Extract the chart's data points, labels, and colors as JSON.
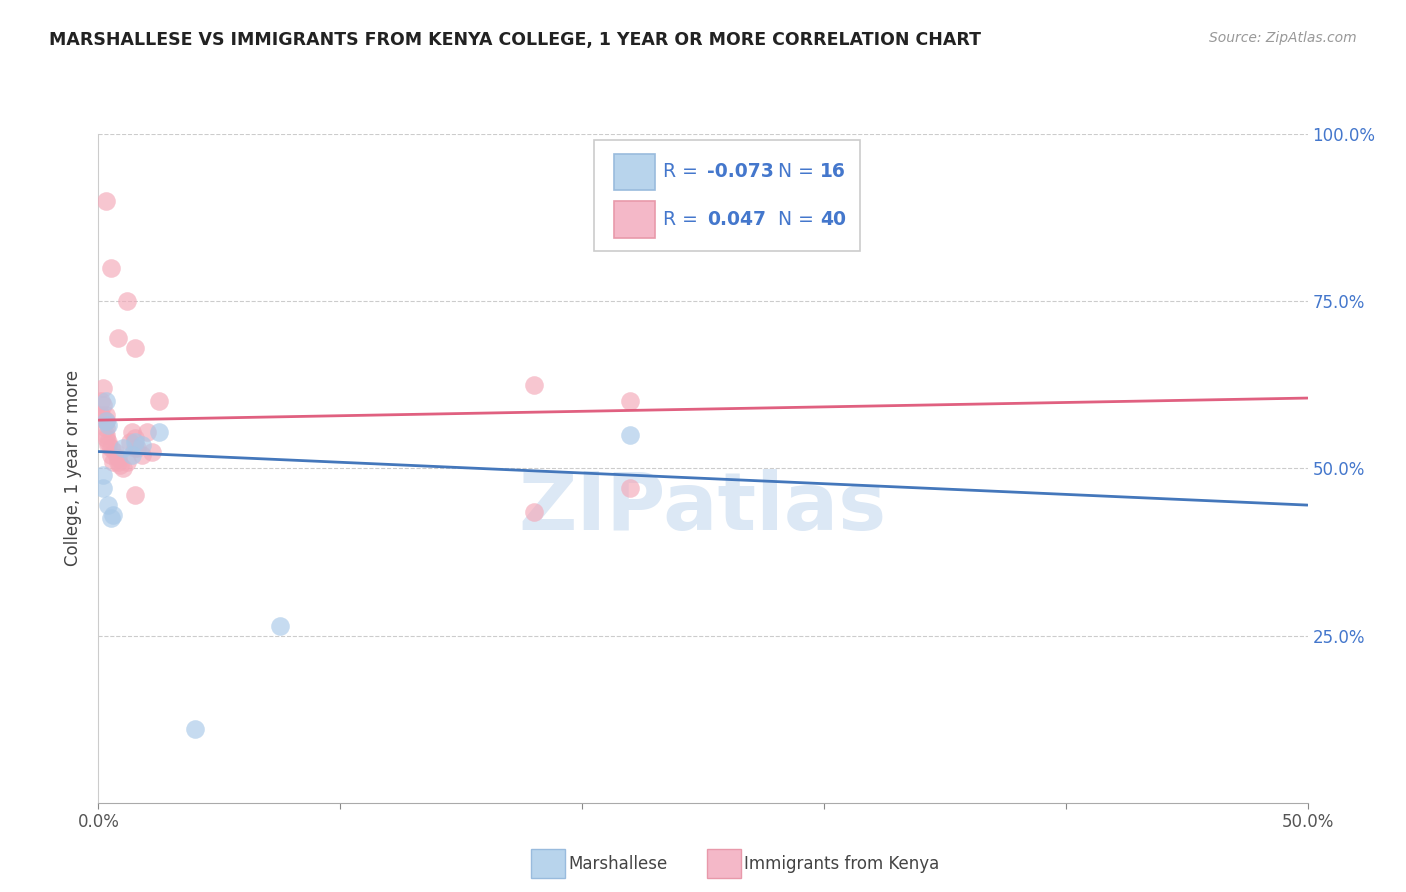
{
  "title": "MARSHALLESE VS IMMIGRANTS FROM KENYA COLLEGE, 1 YEAR OR MORE CORRELATION CHART",
  "source": "Source: ZipAtlas.com",
  "ylabel_label": "College, 1 year or more",
  "xlim": [
    0.0,
    0.5
  ],
  "ylim": [
    0.0,
    1.0
  ],
  "xtick_vals": [
    0.0,
    0.1,
    0.2,
    0.3,
    0.4,
    0.5
  ],
  "xtick_labels": [
    "0.0%",
    "",
    "",
    "",
    "",
    "50.0%"
  ],
  "ytick_vals": [
    0.0,
    0.25,
    0.5,
    0.75,
    1.0
  ],
  "ytick_right_labels": [
    "",
    "25.0%",
    "50.0%",
    "75.0%",
    "100.0%"
  ],
  "blue_scatter_color": "#a8c8e8",
  "pink_scatter_color": "#f4a8b8",
  "blue_line_color": "#4477bb",
  "pink_line_color": "#e06080",
  "legend_text_color": "#4477cc",
  "watermark_text": "ZIPatlas",
  "watermark_color": "#dce8f5",
  "blue_trend_x0": 0.0,
  "blue_trend_y0": 0.525,
  "blue_trend_x1": 0.5,
  "blue_trend_y1": 0.445,
  "pink_trend_x0": 0.0,
  "pink_trend_y0": 0.572,
  "pink_trend_x1": 0.5,
  "pink_trend_y1": 0.605,
  "marshallese_x": [
    0.002,
    0.003,
    0.003,
    0.004,
    0.004,
    0.002,
    0.005,
    0.006,
    0.01,
    0.015,
    0.014,
    0.018,
    0.025,
    0.22,
    0.075,
    0.04
  ],
  "marshallese_y": [
    0.49,
    0.6,
    0.57,
    0.565,
    0.445,
    0.47,
    0.425,
    0.43,
    0.53,
    0.54,
    0.52,
    0.535,
    0.555,
    0.55,
    0.265,
    0.11
  ],
  "kenya_x": [
    0.001,
    0.001,
    0.002,
    0.002,
    0.002,
    0.003,
    0.003,
    0.003,
    0.003,
    0.003,
    0.004,
    0.004,
    0.005,
    0.005,
    0.006,
    0.007,
    0.008,
    0.008,
    0.009,
    0.01,
    0.012,
    0.013,
    0.014,
    0.015,
    0.015,
    0.016,
    0.018,
    0.02,
    0.022,
    0.025,
    0.003,
    0.005,
    0.008,
    0.012,
    0.015,
    0.18,
    0.22,
    0.22,
    0.18,
    0.015
  ],
  "kenya_y": [
    0.58,
    0.6,
    0.62,
    0.595,
    0.575,
    0.58,
    0.57,
    0.56,
    0.55,
    0.545,
    0.54,
    0.535,
    0.53,
    0.52,
    0.51,
    0.525,
    0.515,
    0.51,
    0.505,
    0.5,
    0.51,
    0.54,
    0.555,
    0.545,
    0.53,
    0.53,
    0.52,
    0.555,
    0.525,
    0.6,
    0.9,
    0.8,
    0.695,
    0.75,
    0.46,
    0.625,
    0.6,
    0.47,
    0.435,
    0.68
  ]
}
